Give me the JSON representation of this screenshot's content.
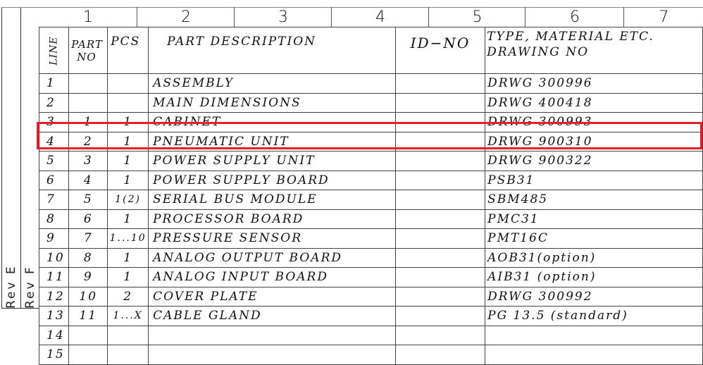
{
  "column_numbers": [
    "1",
    "2",
    "3",
    "4",
    "5",
    "6",
    "7"
  ],
  "revisions": [
    "Rev E",
    "Rev F"
  ],
  "headers": {
    "line": "LINE",
    "part_no_1": "PART",
    "part_no_2": "NO",
    "pcs": "PCS",
    "description": "PART DESCRIPTION",
    "id_no": "ID−NO",
    "type_1": "TYPE, MATERIAL ETC.",
    "type_2": "DRAWING NO"
  },
  "highlight_color": "#e3202b",
  "highlighted_line": "4",
  "rows": [
    {
      "line": "1",
      "part_no": "",
      "pcs": "",
      "description": "ASSEMBLY",
      "id_no": "",
      "type": "DRWG 300996"
    },
    {
      "line": "2",
      "part_no": "",
      "pcs": "",
      "description": "MAIN DIMENSIONS",
      "id_no": "",
      "type": "DRWG 400418"
    },
    {
      "line": "3",
      "part_no": "1",
      "pcs": "1",
      "description": "CABINET",
      "id_no": "",
      "type": "DRWG 300993"
    },
    {
      "line": "4",
      "part_no": "2",
      "pcs": "1",
      "description": "PNEUMATIC UNIT",
      "id_no": "",
      "type": "DRWG 900310"
    },
    {
      "line": "5",
      "part_no": "3",
      "pcs": "1",
      "description": "POWER SUPPLY UNIT",
      "id_no": "",
      "type": "DRWG 900322"
    },
    {
      "line": "6",
      "part_no": "4",
      "pcs": "1",
      "description": "POWER SUPPLY BOARD",
      "id_no": "",
      "type": "PSB31"
    },
    {
      "line": "7",
      "part_no": "5",
      "pcs": "1(2)",
      "description": "SERIAL BUS MODULE",
      "id_no": "",
      "type": "SBM485"
    },
    {
      "line": "8",
      "part_no": "6",
      "pcs": "1",
      "description": "PROCESSOR BOARD",
      "id_no": "",
      "type": "PMC31"
    },
    {
      "line": "9",
      "part_no": "7",
      "pcs": "1...10",
      "description": "PRESSURE SENSOR",
      "id_no": "",
      "type": "PMT16C"
    },
    {
      "line": "10",
      "part_no": "8",
      "pcs": "1",
      "description": "ANALOG OUTPUT BOARD",
      "id_no": "",
      "type": "AOB31(option)"
    },
    {
      "line": "11",
      "part_no": "9",
      "pcs": "1",
      "description": "ANALOG INPUT BOARD",
      "id_no": "",
      "type": "AIB31 (option)"
    },
    {
      "line": "12",
      "part_no": "10",
      "pcs": "2",
      "description": "COVER PLATE",
      "id_no": "",
      "type": "DRWG 300992"
    },
    {
      "line": "13",
      "part_no": "11",
      "pcs": "1...X",
      "description": "CABLE GLAND",
      "id_no": "",
      "type": "PG 13.5 (standard)"
    },
    {
      "line": "14",
      "part_no": "",
      "pcs": "",
      "description": "",
      "id_no": "",
      "type": ""
    },
    {
      "line": "15",
      "part_no": "",
      "pcs": "",
      "description": "",
      "id_no": "",
      "type": ""
    }
  ]
}
